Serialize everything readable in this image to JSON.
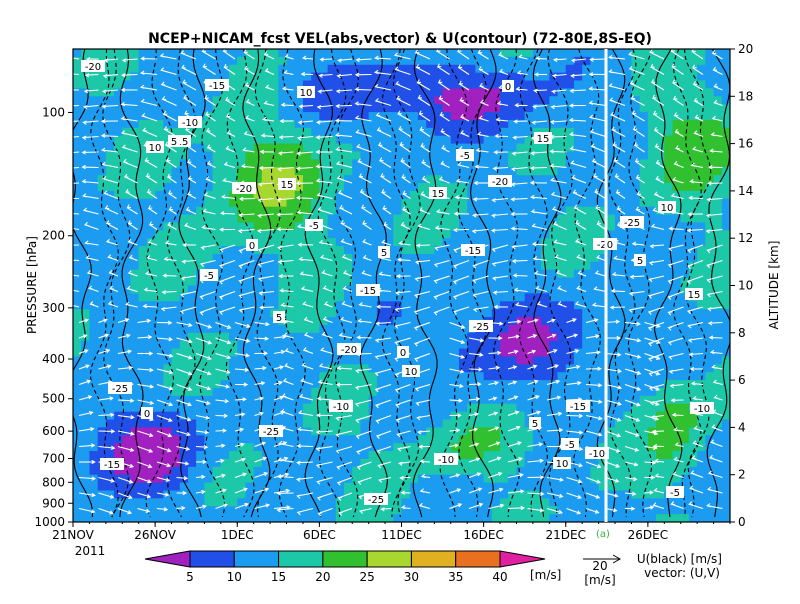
{
  "chart_data": {
    "type": "heatmap",
    "title": "NCEP+NICAM_fcst VEL(abs,vector) & U(contour)  (72-80E,8S-EQ)",
    "xlabel": "",
    "ylabel": "PRESSURE [hPa]",
    "y2label": "ALTITUDE [km]",
    "x_ticks": [
      "21NOV",
      "26NOV",
      "1DEC",
      "6DEC",
      "11DEC",
      "16DEC",
      "21DEC",
      "26DEC"
    ],
    "x_year": "2011",
    "x_range_days": [
      0,
      40
    ],
    "y_ticks_hpa": [
      100,
      200,
      300,
      400,
      500,
      600,
      700,
      800,
      900,
      1000
    ],
    "y_range_hpa": [
      1000,
      70
    ],
    "y2_ticks_km": [
      0,
      2,
      4,
      6,
      8,
      10,
      12,
      14,
      16,
      18,
      20
    ],
    "forecast_split_label": "(a)",
    "colorbar": {
      "levels": [
        5,
        10,
        15,
        20,
        25,
        30,
        35,
        40
      ],
      "colors": [
        "#a020c0",
        "#2050e8",
        "#1c9cf0",
        "#1cc8a8",
        "#30c030",
        "#a8d830",
        "#e0b020",
        "#e87020",
        "#e020a0"
      ],
      "unit": "[m/s]"
    },
    "vector_ref": {
      "value": "20",
      "unit": "[m/s]"
    },
    "legend_text": [
      "U(black) [m/s]",
      "vector: (U,V)"
    ],
    "contour_labels": [
      "-5",
      "-10",
      "-15",
      "-20",
      "-25",
      "0",
      "5",
      "10",
      "15"
    ]
  }
}
